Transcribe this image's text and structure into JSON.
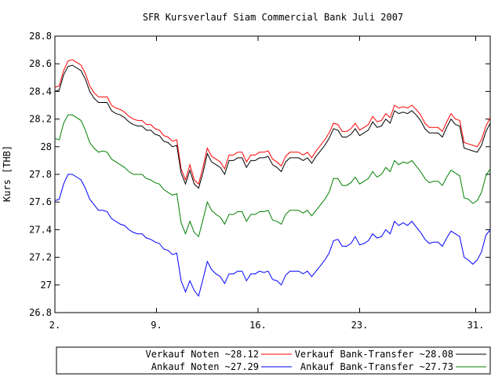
{
  "chart_data": {
    "type": "line",
    "title": "SFR Kursverlauf Siam Commercial Bank Juli 2007",
    "xlabel": "",
    "ylabel": "Kurs [THB]",
    "x_range": [
      2.0,
      32.0
    ],
    "ylim": [
      26.8,
      28.8
    ],
    "y_ticks": [
      26.8,
      27.0,
      27.2,
      27.4,
      27.6,
      27.8,
      28.0,
      28.2,
      28.4,
      28.6,
      28.8
    ],
    "y_tick_labels": [
      "26.8",
      "27",
      "27.2",
      "27.4",
      "27.6",
      "27.8",
      "28",
      "28.2",
      "28.4",
      "28.6",
      "28.8"
    ],
    "x_ticks": [
      2,
      9,
      16,
      23,
      31
    ],
    "x_tick_labels": [
      "2.",
      "9.",
      "16.",
      "23.",
      "31."
    ],
    "grid": false,
    "legend_position": "bottom",
    "x": [
      2.0,
      2.3,
      2.6,
      2.9,
      3.2,
      3.5,
      3.8,
      4.1,
      4.4,
      4.7,
      5.0,
      5.3,
      5.6,
      5.9,
      6.2,
      6.5,
      6.8,
      7.1,
      7.4,
      7.7,
      8.0,
      8.3,
      8.6,
      8.9,
      9.2,
      9.5,
      9.8,
      10.1,
      10.4,
      10.7,
      11.0,
      11.3,
      11.6,
      11.9,
      12.2,
      12.5,
      12.8,
      13.1,
      13.4,
      13.7,
      14.0,
      14.3,
      14.6,
      14.9,
      15.2,
      15.5,
      15.8,
      16.1,
      16.4,
      16.7,
      17.0,
      17.3,
      17.6,
      17.9,
      18.2,
      18.5,
      18.8,
      19.1,
      19.4,
      19.7,
      20.0,
      20.3,
      20.6,
      20.9,
      21.2,
      21.5,
      21.8,
      22.1,
      22.4,
      22.7,
      23.0,
      23.3,
      23.6,
      23.9,
      24.2,
      24.5,
      24.8,
      25.1,
      25.4,
      25.7,
      26.0,
      26.3,
      26.6,
      26.9,
      27.2,
      27.5,
      27.8,
      28.1,
      28.4,
      28.7,
      29.0,
      29.3,
      29.6,
      29.9,
      30.2,
      30.5,
      30.8,
      31.1,
      31.4,
      31.7,
      32.0
    ],
    "series": [
      {
        "name": "Verkauf Noten ~28.12",
        "color": "#ff0000",
        "values": [
          28.43,
          28.44,
          28.55,
          28.62,
          28.63,
          28.61,
          28.59,
          28.53,
          28.44,
          28.39,
          28.36,
          28.36,
          28.36,
          28.3,
          28.28,
          28.27,
          28.25,
          28.22,
          28.2,
          28.19,
          28.19,
          28.16,
          28.16,
          28.13,
          28.12,
          28.08,
          28.07,
          28.04,
          28.05,
          27.84,
          27.76,
          27.87,
          27.76,
          27.73,
          27.85,
          27.99,
          27.93,
          27.91,
          27.89,
          27.84,
          27.94,
          27.94,
          27.96,
          27.96,
          27.89,
          27.94,
          27.94,
          27.96,
          27.96,
          27.97,
          27.91,
          27.89,
          27.86,
          27.93,
          27.96,
          27.96,
          27.96,
          27.94,
          27.96,
          27.92,
          27.97,
          28.01,
          28.05,
          28.1,
          28.17,
          28.16,
          28.11,
          28.11,
          28.13,
          28.17,
          28.12,
          28.14,
          28.16,
          28.22,
          28.18,
          28.19,
          28.24,
          28.21,
          28.3,
          28.28,
          28.29,
          28.28,
          28.3,
          28.27,
          28.23,
          28.17,
          28.14,
          28.14,
          28.14,
          28.11,
          28.18,
          28.24,
          28.2,
          28.19,
          28.03,
          28.02,
          28.01,
          28.0,
          28.05,
          28.15,
          28.21
        ]
      },
      {
        "name": "Ankauf Noten ~27.29",
        "color": "#0000ff",
        "values": [
          27.61,
          27.62,
          27.73,
          27.8,
          27.8,
          27.78,
          27.76,
          27.7,
          27.62,
          27.58,
          27.54,
          27.54,
          27.53,
          27.48,
          27.46,
          27.44,
          27.43,
          27.4,
          27.38,
          27.37,
          27.37,
          27.34,
          27.33,
          27.31,
          27.3,
          27.26,
          27.25,
          27.22,
          27.23,
          27.03,
          26.95,
          27.03,
          26.96,
          26.92,
          27.04,
          27.17,
          27.11,
          27.08,
          27.06,
          27.01,
          27.08,
          27.08,
          27.1,
          27.1,
          27.03,
          27.08,
          27.08,
          27.1,
          27.09,
          27.1,
          27.04,
          27.03,
          27.0,
          27.07,
          27.1,
          27.1,
          27.1,
          27.08,
          27.1,
          27.06,
          27.1,
          27.14,
          27.18,
          27.23,
          27.32,
          27.33,
          27.28,
          27.28,
          27.3,
          27.35,
          27.29,
          27.3,
          27.32,
          27.37,
          27.34,
          27.35,
          27.4,
          27.37,
          27.46,
          27.43,
          27.45,
          27.43,
          27.46,
          27.42,
          27.38,
          27.33,
          27.3,
          27.31,
          27.31,
          27.28,
          27.34,
          27.39,
          27.37,
          27.35,
          27.2,
          27.18,
          27.15,
          27.18,
          27.24,
          27.36,
          27.4
        ]
      },
      {
        "name": "Verkauf Bank-Transfer ~28.08",
        "color": "#000000",
        "values": [
          28.4,
          28.41,
          28.52,
          28.58,
          28.59,
          28.57,
          28.55,
          28.49,
          28.4,
          28.35,
          28.32,
          28.32,
          28.32,
          28.26,
          28.24,
          28.23,
          28.21,
          28.18,
          28.16,
          28.15,
          28.15,
          28.12,
          28.12,
          28.09,
          28.08,
          28.04,
          28.03,
          28.0,
          28.01,
          27.81,
          27.73,
          27.83,
          27.73,
          27.7,
          27.81,
          27.95,
          27.89,
          27.87,
          27.85,
          27.8,
          27.9,
          27.9,
          27.92,
          27.92,
          27.85,
          27.9,
          27.9,
          27.92,
          27.92,
          27.93,
          27.87,
          27.85,
          27.82,
          27.89,
          27.92,
          27.92,
          27.92,
          27.9,
          27.92,
          27.88,
          27.93,
          27.97,
          28.01,
          28.06,
          28.13,
          28.12,
          28.07,
          28.07,
          28.09,
          28.13,
          28.08,
          28.1,
          28.12,
          28.18,
          28.14,
          28.15,
          28.2,
          28.17,
          28.26,
          28.24,
          28.25,
          28.24,
          28.26,
          28.23,
          28.19,
          28.13,
          28.1,
          28.1,
          28.1,
          28.07,
          28.14,
          28.2,
          28.16,
          28.15,
          27.99,
          27.98,
          27.97,
          27.96,
          28.01,
          28.11,
          28.17
        ]
      },
      {
        "name": "Ankauf Bank-Transfer ~27.73",
        "color": "#008000",
        "values": [
          28.06,
          28.05,
          28.17,
          28.23,
          28.23,
          28.21,
          28.19,
          28.12,
          28.03,
          27.99,
          27.96,
          27.97,
          27.96,
          27.91,
          27.89,
          27.87,
          27.85,
          27.82,
          27.8,
          27.8,
          27.8,
          27.77,
          27.76,
          27.74,
          27.73,
          27.69,
          27.67,
          27.65,
          27.66,
          27.45,
          27.37,
          27.46,
          27.38,
          27.35,
          27.47,
          27.6,
          27.54,
          27.51,
          27.49,
          27.44,
          27.51,
          27.51,
          27.53,
          27.53,
          27.46,
          27.51,
          27.51,
          27.53,
          27.53,
          27.54,
          27.47,
          27.46,
          27.44,
          27.51,
          27.54,
          27.54,
          27.54,
          27.52,
          27.54,
          27.5,
          27.54,
          27.58,
          27.62,
          27.67,
          27.77,
          27.77,
          27.72,
          27.72,
          27.74,
          27.78,
          27.73,
          27.75,
          27.77,
          27.82,
          27.78,
          27.8,
          27.85,
          27.82,
          27.9,
          27.87,
          27.89,
          27.88,
          27.9,
          27.86,
          27.82,
          27.77,
          27.74,
          27.75,
          27.75,
          27.72,
          27.78,
          27.83,
          27.81,
          27.79,
          27.63,
          27.62,
          27.59,
          27.61,
          27.67,
          27.79,
          27.84
        ]
      }
    ]
  }
}
